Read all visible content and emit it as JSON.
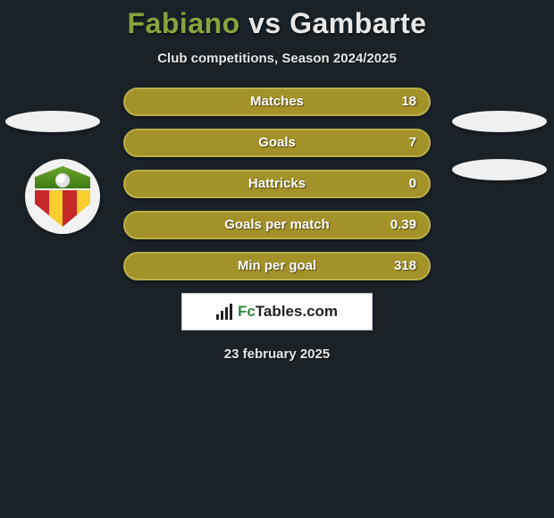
{
  "header": {
    "player1": "Fabiano",
    "vs": "vs",
    "player2": "Gambarte",
    "subtitle": "Club competitions, Season 2024/2025",
    "player1_color": "#88a43e",
    "player2_color": "#e8e8e8"
  },
  "background_color": "#1a2228",
  "stats": {
    "pill_fill_color": "#a39129",
    "pill_border_color": "#b9b04c",
    "pill_fill_width_pct": 100,
    "rows": [
      {
        "label": "Matches",
        "right": "18"
      },
      {
        "label": "Goals",
        "right": "7"
      },
      {
        "label": "Hattricks",
        "right": "0"
      },
      {
        "label": "Goals per match",
        "right": "0.39"
      },
      {
        "label": "Min per goal",
        "right": "318"
      }
    ]
  },
  "footer": {
    "brand_prefix": "Fc",
    "brand_suffix": "Tables.com",
    "date": "23 february 2025"
  }
}
